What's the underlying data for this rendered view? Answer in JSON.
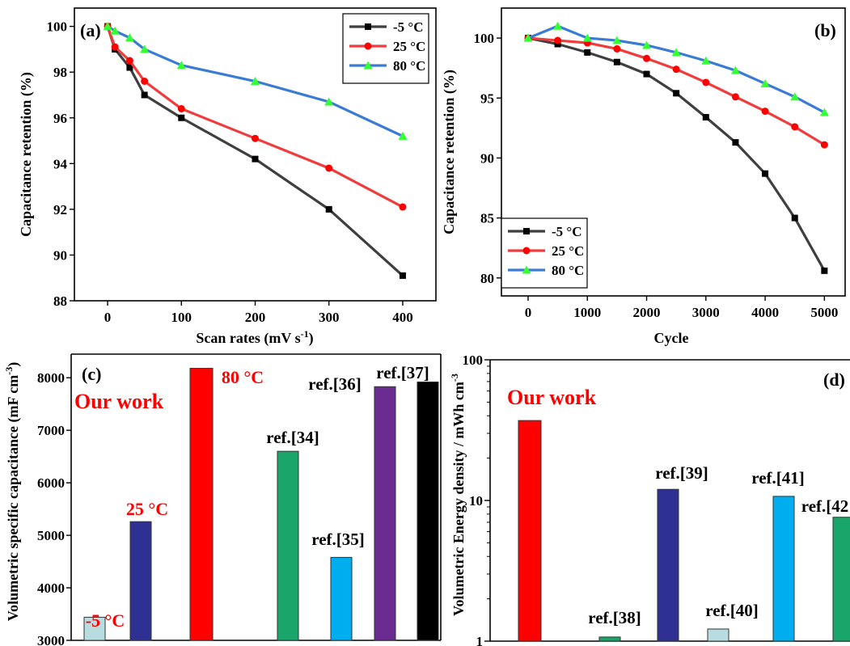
{
  "chart_data": [
    {
      "panel": "(a)",
      "type": "line",
      "xlabel": "Scan rates (mV s-1)",
      "xlabel_main": "Scan rates (mV s",
      "xlabel_sup": "-1",
      "xlabel_end": ")",
      "ylabel": "Capacitance retention (%)",
      "xlim": [
        -45,
        445
      ],
      "ylim": [
        88,
        100.8
      ],
      "xticks": [
        0,
        100,
        200,
        300,
        400
      ],
      "yticks": [
        88,
        90,
        92,
        94,
        96,
        98,
        100
      ],
      "legend_position": "top-right",
      "series": [
        {
          "name": "-5 °C",
          "color": "#3f3f3f",
          "marker": "square",
          "x": [
            0,
            10,
            30,
            50,
            100,
            200,
            300,
            400
          ],
          "y": [
            100,
            99.0,
            98.2,
            97.0,
            96.0,
            94.2,
            92.0,
            89.1
          ]
        },
        {
          "name": "25 °C",
          "color": "#f03c3c",
          "marker": "circle",
          "x": [
            0,
            10,
            30,
            50,
            100,
            200,
            300,
            400
          ],
          "y": [
            100,
            99.1,
            98.5,
            97.6,
            96.4,
            95.1,
            93.8,
            92.1
          ]
        },
        {
          "name": "80 °C",
          "color": "#3a7bd5",
          "marker": "triangle",
          "x": [
            0,
            10,
            30,
            50,
            100,
            200,
            300,
            400
          ],
          "y": [
            100,
            99.8,
            99.5,
            99.0,
            98.3,
            97.6,
            96.7,
            95.2
          ]
        }
      ]
    },
    {
      "panel": "(b)",
      "type": "line",
      "xlabel": "Cycle",
      "ylabel": "Capacitance retention (%)",
      "xlim": [
        -450,
        5350
      ],
      "ylim": [
        78.5,
        102.5
      ],
      "xticks": [
        0,
        1000,
        2000,
        3000,
        4000,
        5000
      ],
      "yticks": [
        80,
        85,
        90,
        95,
        100
      ],
      "legend_position": "bottom-left",
      "series": [
        {
          "name": "-5 °C",
          "color": "#3f3f3f",
          "marker": "square",
          "x": [
            0,
            500,
            1000,
            1500,
            2000,
            2500,
            3000,
            3500,
            4000,
            4500,
            5000
          ],
          "y": [
            100,
            99.5,
            98.8,
            98.0,
            97.0,
            95.4,
            93.4,
            91.3,
            88.7,
            85.0,
            80.6
          ]
        },
        {
          "name": "25 °C",
          "color": "#f03c3c",
          "marker": "circle",
          "x": [
            0,
            500,
            1000,
            1500,
            2000,
            2500,
            3000,
            3500,
            4000,
            4500,
            5000
          ],
          "y": [
            100,
            99.8,
            99.6,
            99.1,
            98.3,
            97.4,
            96.3,
            95.1,
            93.9,
            92.6,
            91.1
          ]
        },
        {
          "name": "80 °C",
          "color": "#3a7bd5",
          "marker": "triangle",
          "x": [
            0,
            500,
            1000,
            1500,
            2000,
            2500,
            3000,
            3500,
            4000,
            4500,
            5000
          ],
          "y": [
            100,
            101.0,
            100.0,
            99.8,
            99.4,
            98.8,
            98.1,
            97.3,
            96.2,
            95.1,
            93.8
          ]
        }
      ]
    },
    {
      "panel": "(c)",
      "type": "bar",
      "ylabel": "Volumetric specific capacitance (mF cm-3)",
      "ylabel_main": "Volumetric specific capacitance (mF cm",
      "ylabel_sup": "-3",
      "ylabel_end": ")",
      "ylim": [
        3000,
        8450
      ],
      "yticks": [
        3000,
        4000,
        5000,
        6000,
        7000,
        8000
      ],
      "annotation": "Our work",
      "bars": [
        {
          "label": "-5 °C",
          "value": 3440,
          "color": "#b7dde1",
          "label_color": "#ff0000"
        },
        {
          "label": "25 °C",
          "value": 5260,
          "color": "#2e3192",
          "label_color": "#ff0000"
        },
        {
          "label": "80 °C",
          "value": 8180,
          "color": "#ff0000",
          "label_color": "#ff0000"
        },
        {
          "label": "ref.[34]",
          "value": 6600,
          "color": "#1aa56a",
          "label_color": "#000000"
        },
        {
          "label": "ref.[35]",
          "value": 4580,
          "color": "#00aeef",
          "label_color": "#000000"
        },
        {
          "label": "ref.[36]",
          "value": 7830,
          "color": "#6a2c91",
          "label_color": "#000000"
        },
        {
          "label": "ref.[37]",
          "value": 7920,
          "color": "#000000",
          "label_color": "#000000"
        }
      ]
    },
    {
      "panel": "(d)",
      "type": "bar",
      "ylabel": "Volumetric Energy density / mWh cm-3",
      "ylabel_main": "Volumetric Energy density / mWh cm",
      "ylabel_sup": "-3",
      "yscale": "log",
      "ylim": [
        1,
        100
      ],
      "yticks": [
        1,
        10,
        100
      ],
      "annotation": "Our work",
      "bars": [
        {
          "label": "",
          "value": 37,
          "color": "#ff0000",
          "label_color": "#ff0000"
        },
        {
          "label": "ref.[38]",
          "value": 1.07,
          "color": "#1aa56a",
          "label_color": "#000000"
        },
        {
          "label": "ref.[39]",
          "value": 12.0,
          "color": "#2e3192",
          "label_color": "#000000"
        },
        {
          "label": "ref.[40]",
          "value": 1.22,
          "color": "#b7dde1",
          "label_color": "#000000"
        },
        {
          "label": "ref.[41]",
          "value": 10.7,
          "color": "#00aeef",
          "label_color": "#000000"
        },
        {
          "label": "ref.[42",
          "value": 7.6,
          "color": "#1aa56a",
          "label_color": "#000000"
        }
      ]
    }
  ]
}
